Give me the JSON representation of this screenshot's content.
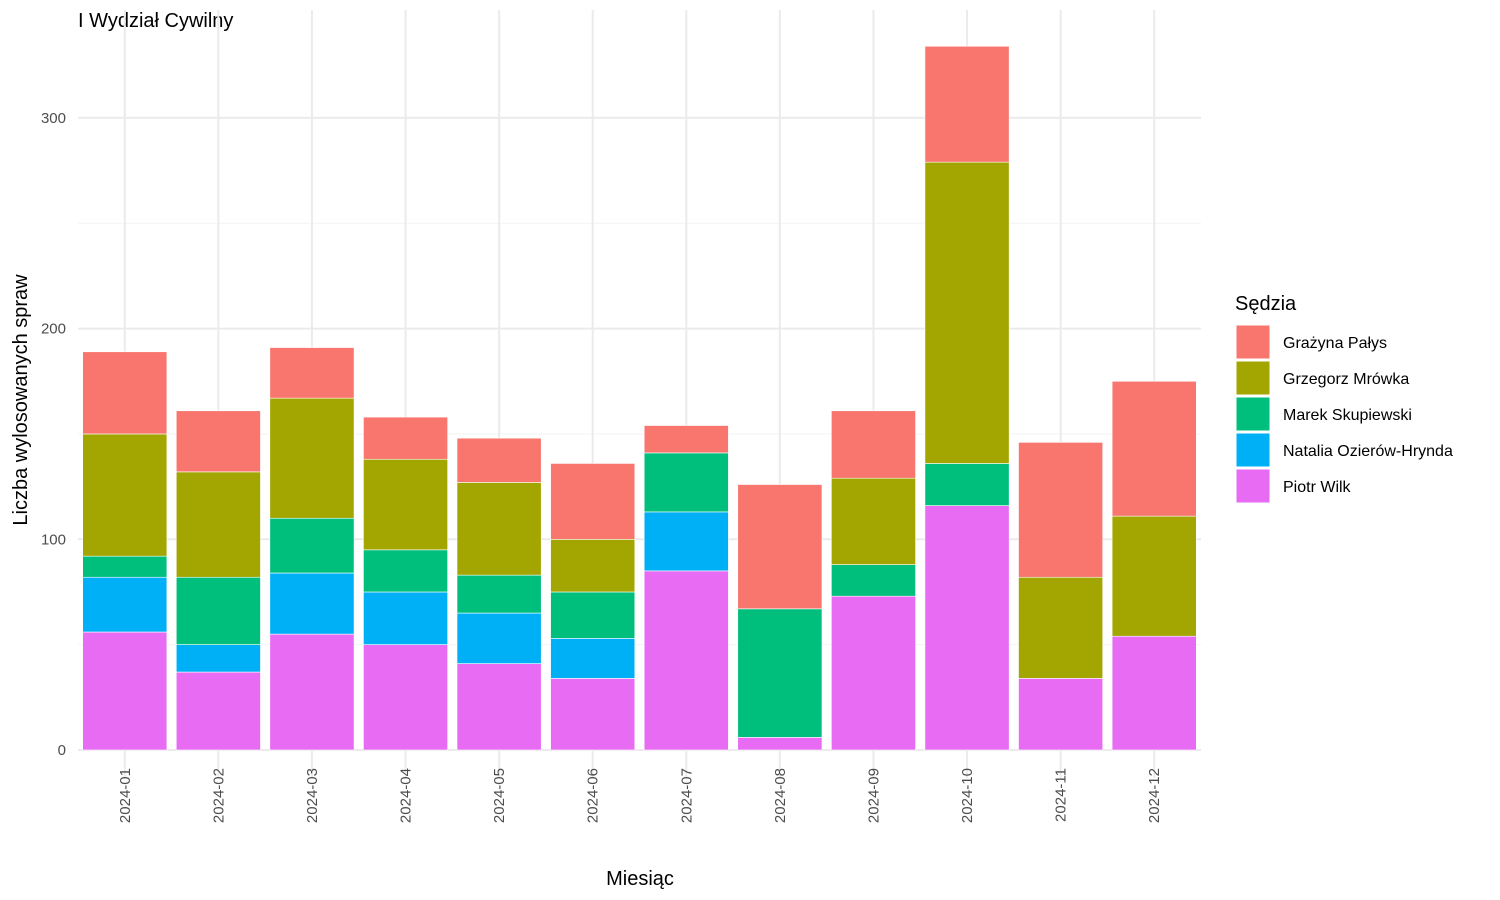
{
  "chart_data": {
    "type": "bar",
    "stacked": true,
    "title": "I Wydział Cywilny",
    "xlabel": "Miesiąc",
    "ylabel": "Liczba wylosowanych spraw",
    "ylim": [
      0,
      335
    ],
    "yticks": [
      0,
      100,
      200,
      300
    ],
    "grid": true,
    "legend_title": "Sędzia",
    "legend_position": "right",
    "categories": [
      "2024-01",
      "2024-02",
      "2024-03",
      "2024-04",
      "2024-05",
      "2024-06",
      "2024-07",
      "2024-08",
      "2024-09",
      "2024-10",
      "2024-11",
      "2024-12"
    ],
    "series": [
      {
        "name": "Grażyna Pałys",
        "color": "#F8766D",
        "values": [
          39,
          29,
          24,
          20,
          21,
          36,
          13,
          59,
          32,
          55,
          64,
          64
        ]
      },
      {
        "name": "Grzegorz Mrówka",
        "color": "#A3A500",
        "values": [
          58,
          50,
          57,
          43,
          44,
          25,
          0,
          0,
          41,
          143,
          48,
          57
        ]
      },
      {
        "name": "Marek Skupiewski",
        "color": "#00BF7D",
        "values": [
          10,
          32,
          26,
          20,
          18,
          22,
          28,
          61,
          15,
          20,
          0,
          0
        ]
      },
      {
        "name": "Natalia Ozierów-Hrynda",
        "color": "#00B0F6",
        "values": [
          26,
          13,
          29,
          25,
          24,
          19,
          28,
          0,
          0,
          0,
          0,
          0
        ]
      },
      {
        "name": "Piotr Wilk",
        "color": "#E76BF3",
        "values": [
          56,
          37,
          55,
          50,
          41,
          34,
          85,
          6,
          73,
          116,
          34,
          54
        ]
      }
    ]
  }
}
